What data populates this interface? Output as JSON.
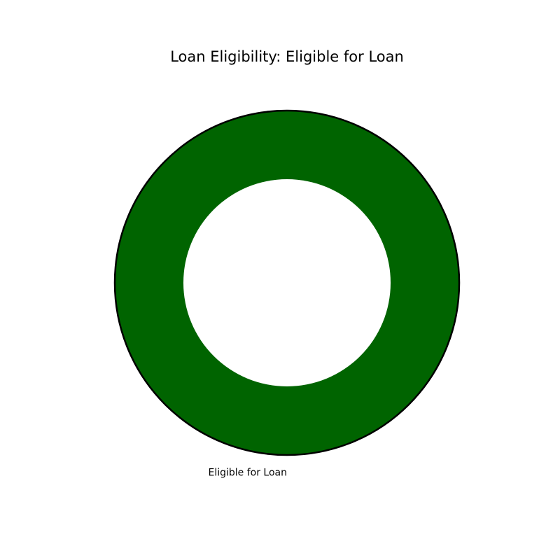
{
  "chart_data": {
    "type": "pie",
    "subtype": "donut",
    "title": "Loan Eligibility: Eligible for Loan",
    "slices": [
      {
        "label": "Eligible for Loan",
        "value": 100,
        "color": "#006400"
      }
    ],
    "edge_color": "#000000",
    "background": "#ffffff",
    "legend": "none"
  }
}
